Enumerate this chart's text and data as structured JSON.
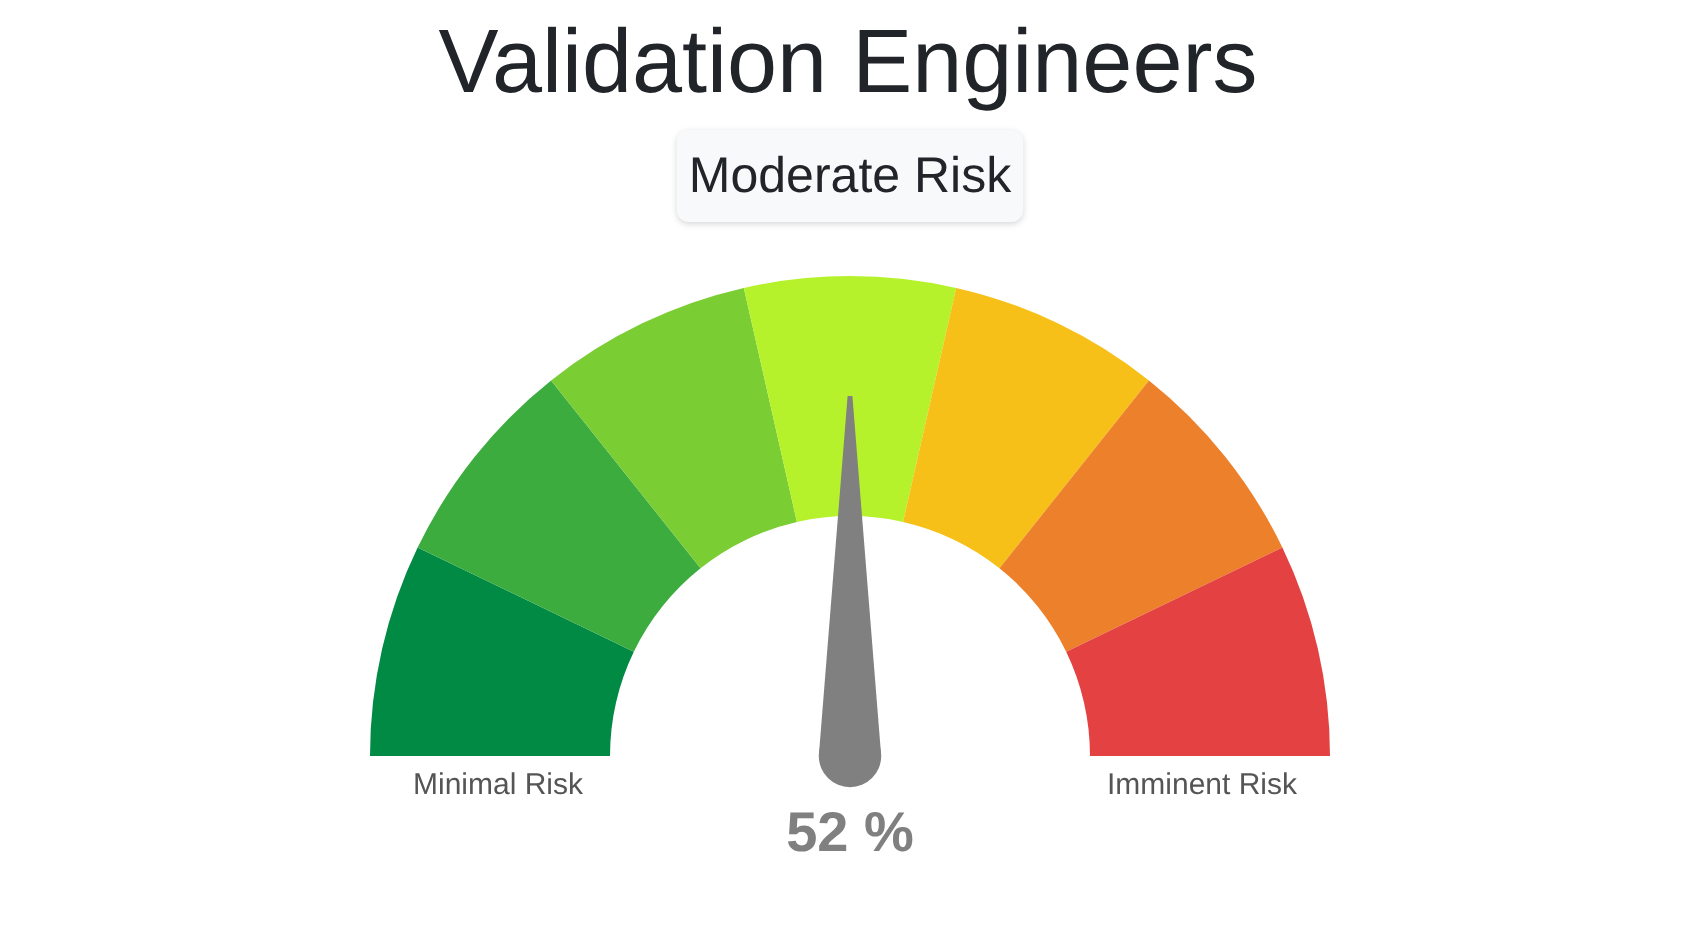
{
  "chart_data": {
    "type": "donut",
    "title": "Validation Engineers",
    "categories": [
      null,
      null,
      null,
      "Moderate Risk",
      null,
      null,
      null
    ],
    "values": [
      14.3,
      14.3,
      14.3,
      14.2,
      14.3,
      14.3,
      14.3
    ],
    "colors": [
      "#008a43",
      "#3dac3f",
      "#7acd33",
      "#b6f22b",
      "#f6c018",
      "#ed812b",
      "#e44242"
    ],
    "needle": "Moderate Risk",
    "annotations": [
      "Minimal Risk",
      "Imminent Risk",
      "52 %"
    ]
  }
}
